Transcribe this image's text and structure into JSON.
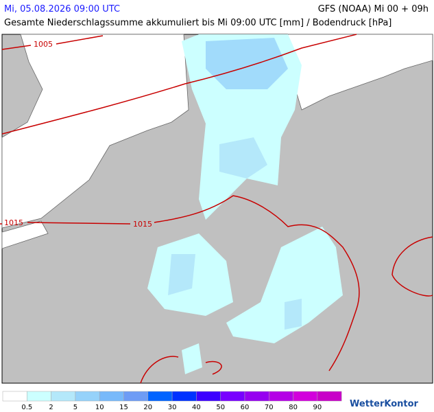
{
  "header": {
    "datetime": "Mi, 05.08.2026 09:00 UTC",
    "model": "GFS (NOAA) Mi 00 + 09h",
    "subtitle": "Gesamte Niederschlagssumme akkumuliert bis Mi 09:00 UTC [mm] / Bodendruck [hPa]"
  },
  "isobars": [
    {
      "label": "1005"
    },
    {
      "label": "1015"
    },
    {
      "label": "1015"
    }
  ],
  "legend": {
    "colors": [
      "#ffffff",
      "#ccffff",
      "#b4e8fa",
      "#96d2fa",
      "#78b9fa",
      "#6e9cf5",
      "#0064ff",
      "#0032ff",
      "#3c00ff",
      "#7800ff",
      "#9600f0",
      "#b400e6",
      "#d200dc",
      "#c800c8"
    ],
    "labels": [
      0.5,
      2,
      5,
      10,
      15,
      20,
      30,
      40,
      50,
      60,
      70,
      80,
      90
    ]
  },
  "logo": "WetterKontor"
}
